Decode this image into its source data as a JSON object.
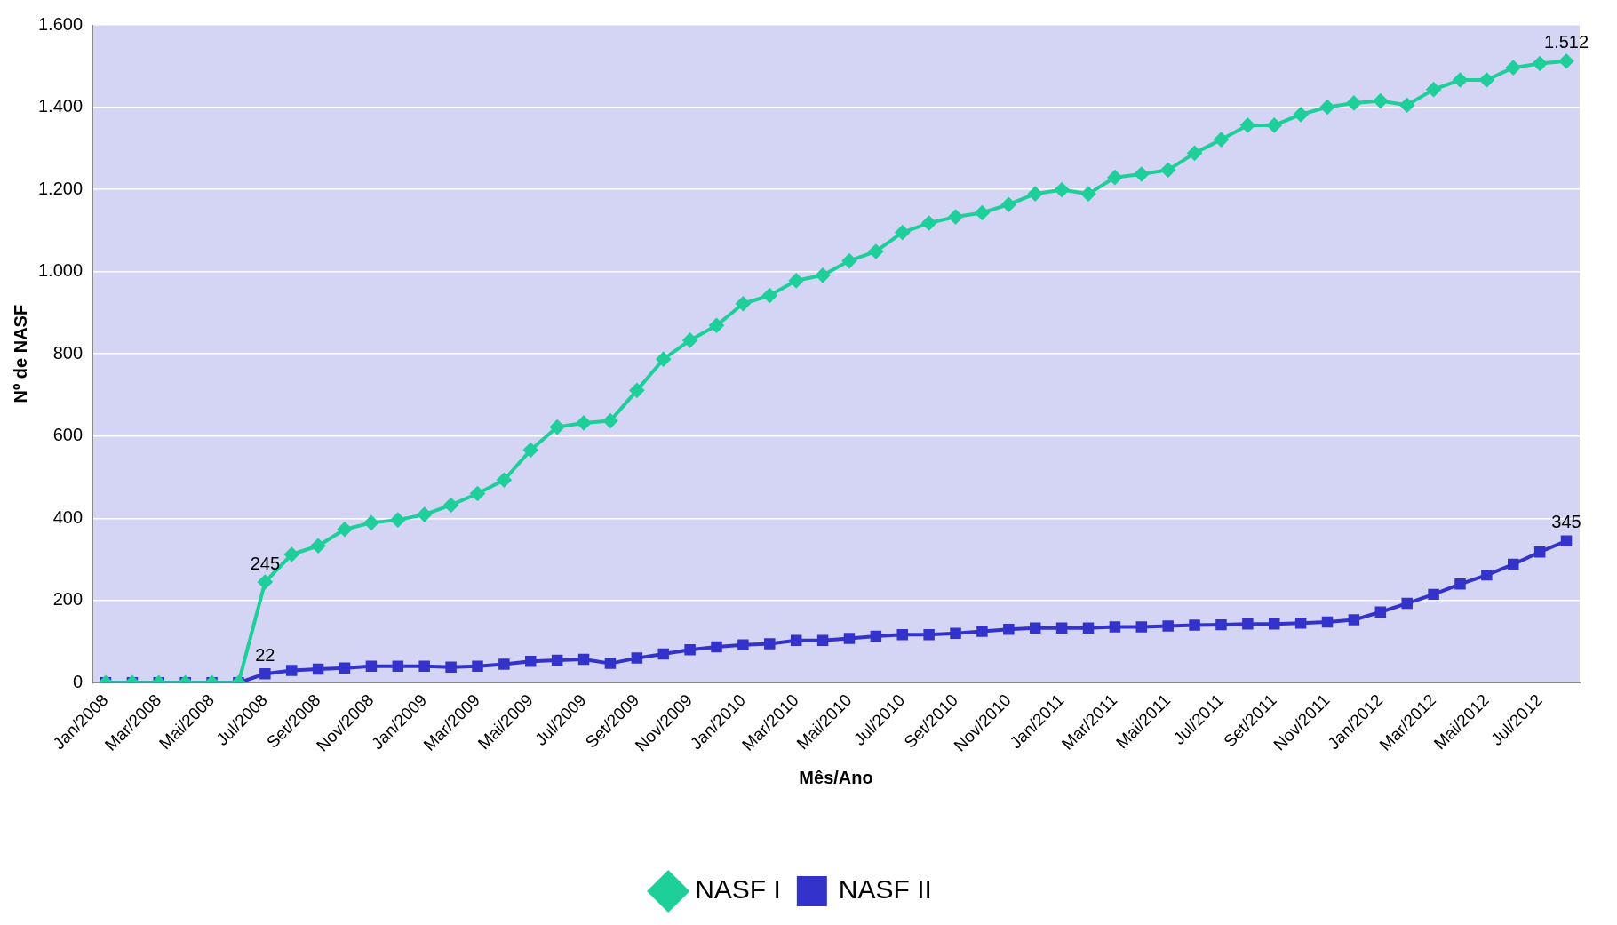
{
  "chart_data": {
    "type": "line",
    "xlabel": "Mês/Ano",
    "ylabel": "Nº de NASF",
    "categories": [
      "Jan/2008",
      null,
      "Mar/2008",
      null,
      "Mai/2008",
      null,
      "Jul/2008",
      null,
      "Set/2008",
      null,
      "Nov/2008",
      null,
      "Jan/2009",
      null,
      "Mar/2009",
      null,
      "Mai/2009",
      null,
      "Jul/2009",
      null,
      "Set/2009",
      null,
      "Nov/2009",
      null,
      "Jan/2010",
      null,
      "Mar/2010",
      null,
      "Mai/2010",
      null,
      "Jul/2010",
      null,
      "Set/2010",
      null,
      "Nov/2010",
      null,
      "Jan/2011",
      null,
      "Mar/2011",
      null,
      "Mai/2011",
      null,
      "Jul/2011",
      null,
      "Set/2011",
      null,
      "Nov/2011",
      null,
      "Jan/2012",
      null,
      "Mar/2012",
      null,
      "Mai/2012",
      null,
      "Jul/2012",
      null
    ],
    "series": [
      {
        "name": "NASF I",
        "color": "#1fcf9a",
        "marker": "diamond",
        "values": [
          0,
          0,
          0,
          0,
          0,
          0,
          245,
          312,
          333,
          373,
          389,
          396,
          409,
          432,
          460,
          493,
          566,
          622,
          632,
          637,
          711,
          787,
          833,
          869,
          922,
          942,
          978,
          991,
          1026,
          1049,
          1095,
          1118,
          1133,
          1143,
          1163,
          1189,
          1199,
          1189,
          1229,
          1237,
          1247,
          1288,
          1321,
          1356,
          1356,
          1382,
          1400,
          1410,
          1415,
          1405,
          1443,
          1466,
          1466,
          1496,
          1506,
          1512
        ],
        "value_labels": [
          null,
          null,
          null,
          null,
          null,
          null,
          "245",
          null,
          null,
          null,
          null,
          null,
          null,
          null,
          null,
          null,
          null,
          null,
          null,
          null,
          null,
          null,
          null,
          null,
          null,
          null,
          null,
          null,
          null,
          null,
          null,
          null,
          null,
          null,
          null,
          null,
          null,
          null,
          null,
          null,
          null,
          null,
          null,
          null,
          null,
          null,
          null,
          null,
          null,
          null,
          null,
          null,
          null,
          null,
          null,
          "1.512"
        ]
      },
      {
        "name": "NASF II",
        "color": "#3333cc",
        "marker": "square",
        "values": [
          0,
          0,
          0,
          0,
          0,
          0,
          22,
          30,
          33,
          36,
          40,
          40,
          40,
          38,
          40,
          45,
          52,
          55,
          57,
          47,
          60,
          70,
          80,
          87,
          92,
          95,
          103,
          103,
          108,
          113,
          117,
          117,
          120,
          125,
          130,
          133,
          133,
          133,
          136,
          136,
          138,
          140,
          141,
          143,
          143,
          145,
          148,
          153,
          172,
          193,
          215,
          240,
          262,
          288,
          318,
          345
        ],
        "value_labels": [
          null,
          null,
          null,
          null,
          null,
          null,
          "22",
          null,
          null,
          null,
          null,
          null,
          null,
          null,
          null,
          null,
          null,
          null,
          null,
          null,
          null,
          null,
          null,
          null,
          null,
          null,
          null,
          null,
          null,
          null,
          null,
          null,
          null,
          null,
          null,
          null,
          null,
          null,
          null,
          null,
          null,
          null,
          null,
          null,
          null,
          null,
          null,
          null,
          null,
          null,
          null,
          null,
          null,
          null,
          null,
          "345"
        ]
      }
    ],
    "ylim": [
      0,
      1600
    ],
    "yticks": [
      0,
      200,
      400,
      600,
      800,
      {
        "value": 1000,
        "label": "1.000"
      },
      {
        "value": 1200,
        "label": "1.200"
      },
      {
        "value": 1400,
        "label": "1.400"
      },
      {
        "value": 1600,
        "label": "1.600"
      }
    ],
    "grid": "y",
    "legend": "bottom",
    "line_style": "solid"
  }
}
